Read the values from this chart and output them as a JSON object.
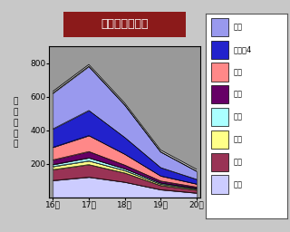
{
  "title": "インフルエンザ",
  "xlabel_weeks": [
    "16週",
    "17週",
    "18週",
    "19週",
    "20週"
  ],
  "ylabel": "定\n点\n患\n者\n数",
  "ylim": [
    0,
    900
  ],
  "yticks": [
    200,
    400,
    600,
    800
  ],
  "regions": [
    "仙台",
    "気仙氧4",
    "石巻",
    "登米",
    "栗原",
    "大崎",
    "塩餜",
    "仙南"
  ],
  "legend_labels": [
    "仙台",
    "気仙氧4",
    "石巻",
    "登米",
    "栗原",
    "大崎",
    "塩餜",
    "仙南"
  ],
  "stack_order": [
    "仙南",
    "塩餜",
    "大崎",
    "栗原",
    "登米",
    "石巻",
    "気仙氧4",
    "仙台"
  ],
  "colors_map": {
    "仙台": "#9999ee",
    "気仙氧4": "#2222cc",
    "石巻": "#ff8888",
    "登米": "#660066",
    "栗原": "#aaffff",
    "大崎": "#ffff88",
    "塩餜": "#993355",
    "仙南": "#ccccff"
  },
  "data": {
    "仙南": [
      100,
      120,
      90,
      45,
      25
    ],
    "塩餜": [
      65,
      75,
      55,
      25,
      18
    ],
    "大崎": [
      18,
      22,
      14,
      8,
      6
    ],
    "栗原": [
      12,
      18,
      11,
      7,
      4
    ],
    "登米": [
      28,
      38,
      22,
      12,
      8
    ],
    "石巻": [
      75,
      95,
      65,
      30,
      18
    ],
    "気仙氧4": [
      110,
      150,
      100,
      50,
      28
    ],
    "仙台": [
      212,
      262,
      193,
      93,
      48
    ]
  },
  "background_outer": "#c8c8c8",
  "background_plot": "#999999",
  "title_bg": "#8b1a1a",
  "title_fg": "#ffffff",
  "legend_bg": "#ffffff",
  "border_color": "#000000"
}
